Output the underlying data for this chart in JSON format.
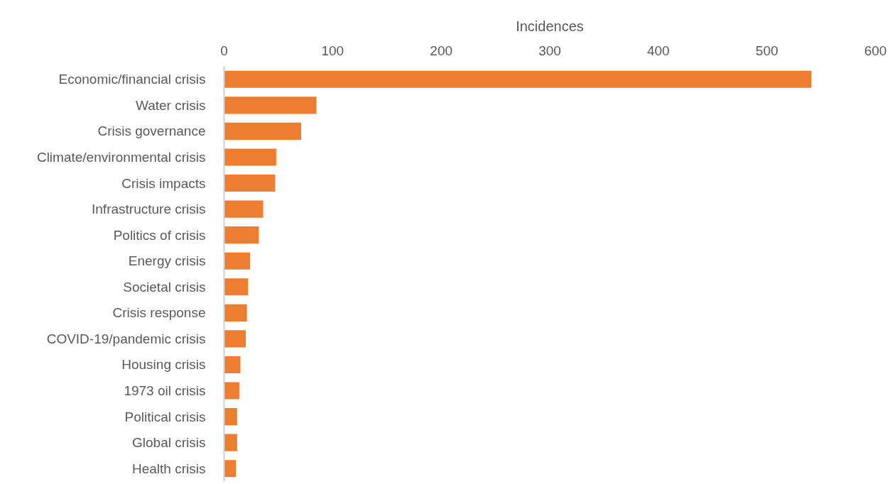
{
  "chart_data": {
    "type": "bar",
    "orientation": "horizontal",
    "xlabel": "Incidences",
    "categories": [
      "Economic/financial crisis",
      "Water crisis",
      "Crisis governance",
      "Climate/environmental crisis",
      "Crisis impacts",
      "Infrastructure crisis",
      "Politics of crisis",
      "Energy crisis",
      "Societal crisis",
      "Crisis response",
      "COVID-19/pandemic crisis",
      "Housing crisis",
      "1973 oil crisis",
      "Political crisis",
      "Global crisis",
      "Health crisis"
    ],
    "values": [
      541,
      85,
      71,
      48,
      47,
      36,
      32,
      24,
      22,
      21,
      20,
      15,
      14,
      12,
      12,
      11
    ],
    "color": "#ed7d31",
    "xlim": [
      0,
      600
    ],
    "xticks": [
      0,
      100,
      200,
      300,
      400,
      500,
      600
    ],
    "grid": false
  }
}
